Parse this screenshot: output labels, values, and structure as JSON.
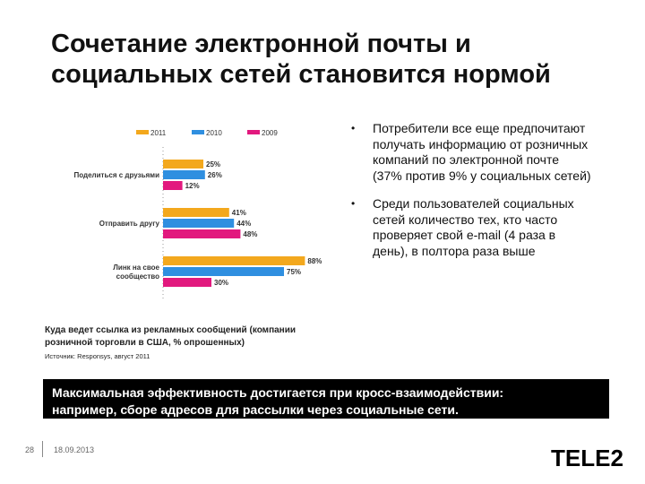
{
  "title": {
    "line1": "Сочетание электронной почты и",
    "line2": "социальных сетей становится нормой"
  },
  "chart_data": {
    "type": "bar",
    "orientation": "horizontal",
    "categories": [
      "Поделиться с друзьями",
      "Отправить другу",
      "Линк на свое сообщество"
    ],
    "category_lines": [
      [
        "Поделиться с друзьями"
      ],
      [
        "Отправить другу"
      ],
      [
        "Линк на свое",
        "сообщество"
      ]
    ],
    "series": [
      {
        "name": "2011",
        "color": "#f3a81d",
        "values": [
          25,
          41,
          88
        ]
      },
      {
        "name": "2010",
        "color": "#2f8fe0",
        "values": [
          26,
          44,
          75
        ]
      },
      {
        "name": "2009",
        "color": "#e2197e",
        "values": [
          12,
          48,
          30
        ]
      }
    ],
    "value_suffix": "%",
    "xlim": [
      0,
      100
    ],
    "legend": "top",
    "grid": false
  },
  "bullets": [
    "Потребители все еще предпочитают получать информацию от розничных компаний по электронной почте (37% против 9% у социальных сетей)",
    "Среди пользователей социальных сетей количество тех, кто часто проверяет свой e-mail (4 раза в день), в полтора раза выше"
  ],
  "bullet_symbol": "•",
  "caption": "Куда ведет ссылка из рекламных сообщений (компании розничной торговли в США, % опрошенных)",
  "source": "Источник: Responsys, август 2011",
  "banner": {
    "line1": "Максимальная эффективность достигается при кросс-взаимодействии:",
    "line2": "например, сборе адресов для рассылки через социальные сети."
  },
  "footer": {
    "page": "28",
    "date": "18.09.2013"
  },
  "logo": {
    "text": "TELE2",
    "color": "#000000"
  }
}
